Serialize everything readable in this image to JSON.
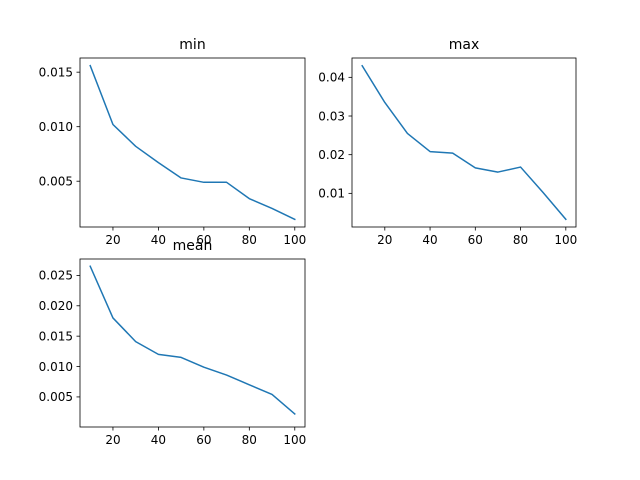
{
  "chart_data": [
    {
      "type": "line",
      "title": "min",
      "x": [
        10,
        20,
        30,
        40,
        50,
        60,
        70,
        80,
        90,
        100
      ],
      "series": [
        {
          "values": [
            0.0156,
            0.0102,
            0.0082,
            0.0067,
            0.0053,
            0.0049,
            0.0049,
            0.0034,
            0.0025,
            0.0015
          ]
        }
      ],
      "xticks": [
        20,
        40,
        60,
        80,
        100
      ],
      "xtick_labels": [
        "20",
        "40",
        "60",
        "80",
        "100"
      ],
      "yticks": [
        0.005,
        0.01,
        0.015
      ],
      "ytick_labels": [
        "0.005",
        "0.010",
        "0.015"
      ],
      "xlim": [
        5.5,
        104.5
      ],
      "ylim": [
        0.0008,
        0.0163
      ],
      "color": "#1f77b4"
    },
    {
      "type": "line",
      "title": "max",
      "x": [
        10,
        20,
        30,
        40,
        50,
        60,
        70,
        80,
        90,
        100
      ],
      "series": [
        {
          "values": [
            0.043,
            0.0335,
            0.0255,
            0.0208,
            0.0204,
            0.0166,
            0.0155,
            0.0168,
            0.0102,
            0.0033
          ]
        }
      ],
      "xticks": [
        20,
        40,
        60,
        80,
        100
      ],
      "xtick_labels": [
        "20",
        "40",
        "60",
        "80",
        "100"
      ],
      "yticks": [
        0.01,
        0.02,
        0.03,
        0.04
      ],
      "ytick_labels": [
        "0.01",
        "0.02",
        "0.03",
        "0.04"
      ],
      "xlim": [
        5.5,
        104.5
      ],
      "ylim": [
        0.0013,
        0.045
      ],
      "color": "#1f77b4"
    },
    {
      "type": "line",
      "title": "mean",
      "x": [
        10,
        20,
        30,
        40,
        50,
        60,
        70,
        80,
        90,
        100
      ],
      "series": [
        {
          "values": [
            0.0265,
            0.018,
            0.0141,
            0.012,
            0.0115,
            0.0099,
            0.0086,
            0.007,
            0.0054,
            0.0022
          ]
        }
      ],
      "xticks": [
        20,
        40,
        60,
        80,
        100
      ],
      "xtick_labels": [
        "20",
        "40",
        "60",
        "80",
        "100"
      ],
      "yticks": [
        0.005,
        0.01,
        0.015,
        0.02,
        0.025
      ],
      "ytick_labels": [
        "0.005",
        "0.010",
        "0.015",
        "0.020",
        "0.025"
      ],
      "xlim": [
        5.5,
        104.5
      ],
      "ylim": [
        5e-05,
        0.0277
      ],
      "color": "#1f77b4"
    }
  ]
}
